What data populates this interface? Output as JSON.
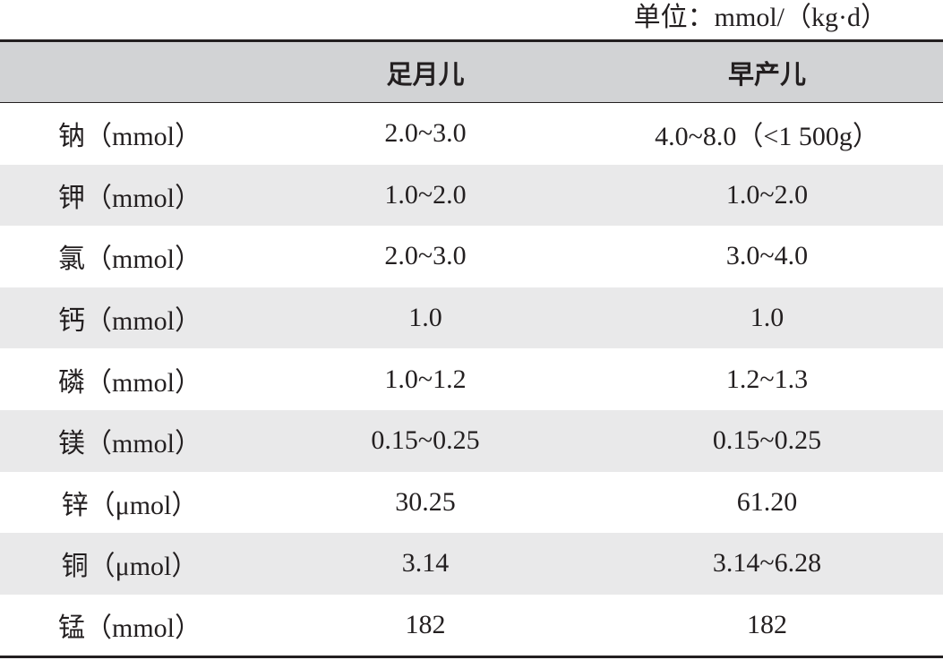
{
  "unit_note": "单位：mmol/（kg·d）",
  "table": {
    "headers": [
      "",
      "足月儿",
      "早产儿"
    ],
    "rows": [
      [
        "钠（mmol）",
        "2.0~3.0",
        "4.0~8.0（<1 500g）"
      ],
      [
        "钾（mmol）",
        "1.0~2.0",
        "1.0~2.0"
      ],
      [
        "氯（mmol）",
        "2.0~3.0",
        "3.0~4.0"
      ],
      [
        "钙（mmol）",
        "1.0",
        "1.0"
      ],
      [
        "磷（mmol）",
        "1.0~1.2",
        "1.2~1.3"
      ],
      [
        "镁（mmol）",
        "0.15~0.25",
        "0.15~0.25"
      ],
      [
        "锌（μmol）",
        "30.25",
        "61.20"
      ],
      [
        "铜（μmol）",
        "3.14",
        "3.14~6.28"
      ],
      [
        "锰（mmol）",
        "182",
        "182"
      ]
    ]
  },
  "colors": {
    "header_bg": "#d2d3d5",
    "stripe_bg": "#e9e9ea",
    "rule": "#231f20"
  }
}
